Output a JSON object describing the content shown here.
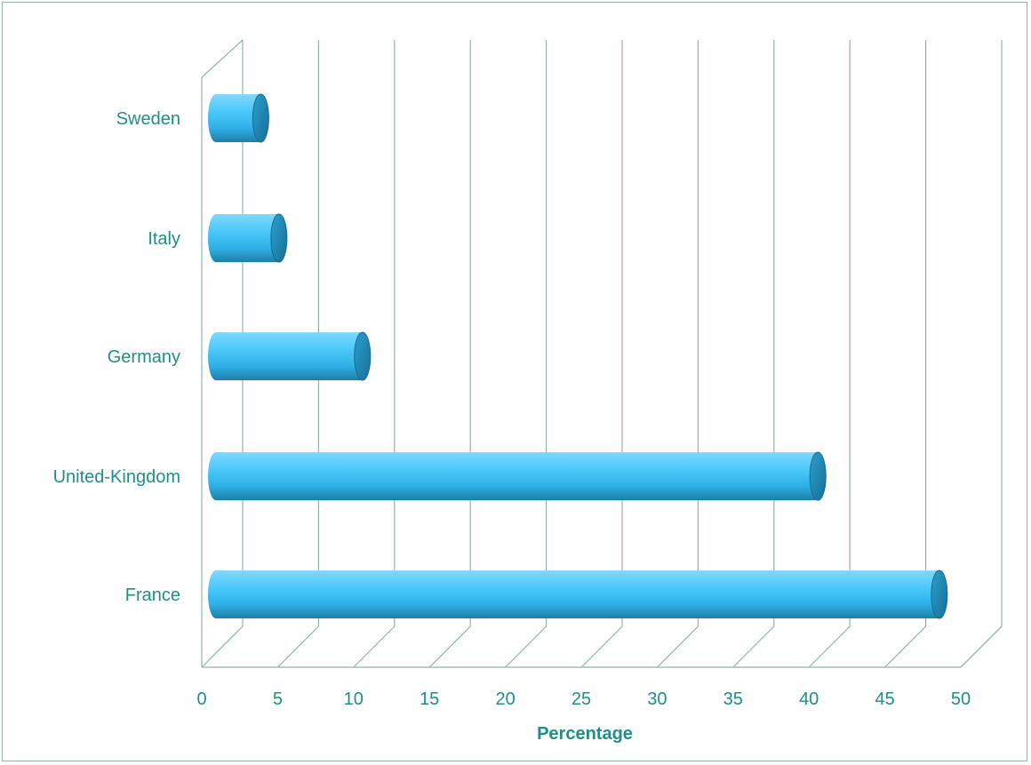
{
  "chart_data": {
    "type": "bar",
    "orientation": "horizontal",
    "style": "3d-cylinder",
    "categories": [
      "France",
      "United-Kingdom",
      "Germany",
      "Italy",
      "Sweden"
    ],
    "values": [
      48,
      40,
      10,
      4.5,
      3.3
    ],
    "xlabel": "Percentage",
    "ylabel": "",
    "xlim": [
      0,
      50
    ],
    "xticks": [
      "0",
      "5",
      "10",
      "15",
      "20",
      "25",
      "30",
      "35",
      "40",
      "45",
      "50"
    ],
    "grid": true,
    "legend": "none",
    "colors": {
      "bar_light": "#55ccff",
      "bar_mid": "#2fb0e6",
      "bar_dark": "#1e7fa8",
      "cap": "#1f85ad",
      "grid": "#8fb3aa",
      "text": "#1f8f86"
    }
  }
}
